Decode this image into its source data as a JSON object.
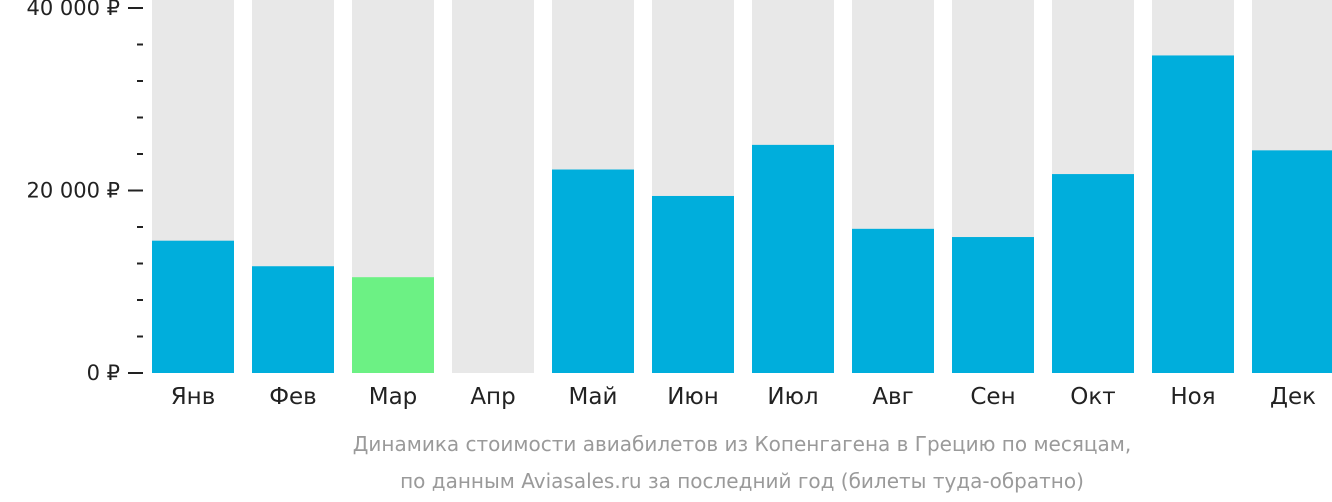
{
  "chart_data": {
    "type": "bar",
    "categories": [
      "Янв",
      "Фев",
      "Мар",
      "Апр",
      "Май",
      "Июн",
      "Июл",
      "Авг",
      "Сен",
      "Окт",
      "Ноя",
      "Дек"
    ],
    "values": [
      14500,
      11700,
      10500,
      null,
      22300,
      19400,
      25000,
      15800,
      14900,
      21800,
      34800,
      24400
    ],
    "highlight_category": "Мар",
    "ylim": [
      0,
      40000
    ],
    "yticks": [
      {
        "value": 0,
        "label": "0 ₽"
      },
      {
        "value": 20000,
        "label": "20 000 ₽"
      },
      {
        "value": 40000,
        "label": "40 000 ₽"
      }
    ],
    "minor_tick_step": 4000,
    "grid": false,
    "colors": {
      "bar": "#00aedc",
      "highlight": "#6cf184",
      "background_bar": "#e8e8e8",
      "axis": "#222222"
    }
  },
  "caption": {
    "line1": "Динамика стоимости авиабилетов из Копенгагена в Грецию по месяцам,",
    "line2": "по данным Aviasales.ru за последний год (билеты туда-обратно)"
  }
}
